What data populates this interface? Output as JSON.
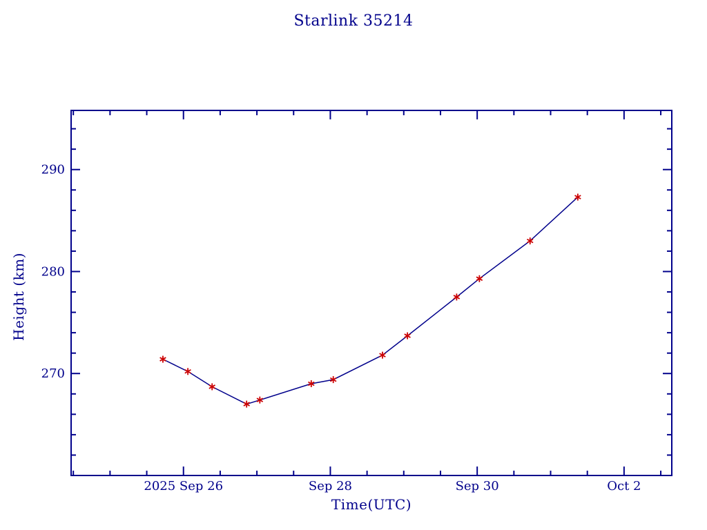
{
  "colors": {
    "ink": "#00008B",
    "marker": "#CC0000",
    "background": "#FFFFFF"
  },
  "chart_data": {
    "type": "line",
    "title": "Starlink 35214",
    "xlabel": "Time(UTC)",
    "ylabel": "Height (km)",
    "x_unit": "days since 2025 Sep 26 00:00 UTC",
    "xlim": [
      -1.53,
      6.65
    ],
    "ylim": [
      260,
      295.8
    ],
    "grid": false,
    "legend": null,
    "x_major_ticks": [
      {
        "value": 0,
        "label": "2025 Sep 26"
      },
      {
        "value": 2,
        "label": "Sep 28"
      },
      {
        "value": 4,
        "label": "Sep 30"
      },
      {
        "value": 6,
        "label": "Oct  2"
      }
    ],
    "x_minor_step": 0.5,
    "y_major_ticks": [
      {
        "value": 270,
        "label": "270"
      },
      {
        "value": 280,
        "label": "280"
      },
      {
        "value": 290,
        "label": "290"
      }
    ],
    "y_minor_step": 2,
    "series": [
      {
        "name": "height",
        "marker": "asterisk",
        "points": [
          {
            "x": -0.28,
            "y": 271.4
          },
          {
            "x": 0.06,
            "y": 270.2
          },
          {
            "x": 0.39,
            "y": 268.7
          },
          {
            "x": 0.86,
            "y": 267.0
          },
          {
            "x": 1.04,
            "y": 267.4
          },
          {
            "x": 1.74,
            "y": 269.0
          },
          {
            "x": 2.04,
            "y": 269.4
          },
          {
            "x": 2.71,
            "y": 271.8
          },
          {
            "x": 3.05,
            "y": 273.7
          },
          {
            "x": 3.72,
            "y": 277.5
          },
          {
            "x": 4.03,
            "y": 279.3
          },
          {
            "x": 4.72,
            "y": 283.0
          },
          {
            "x": 5.37,
            "y": 287.3
          }
        ]
      }
    ]
  }
}
